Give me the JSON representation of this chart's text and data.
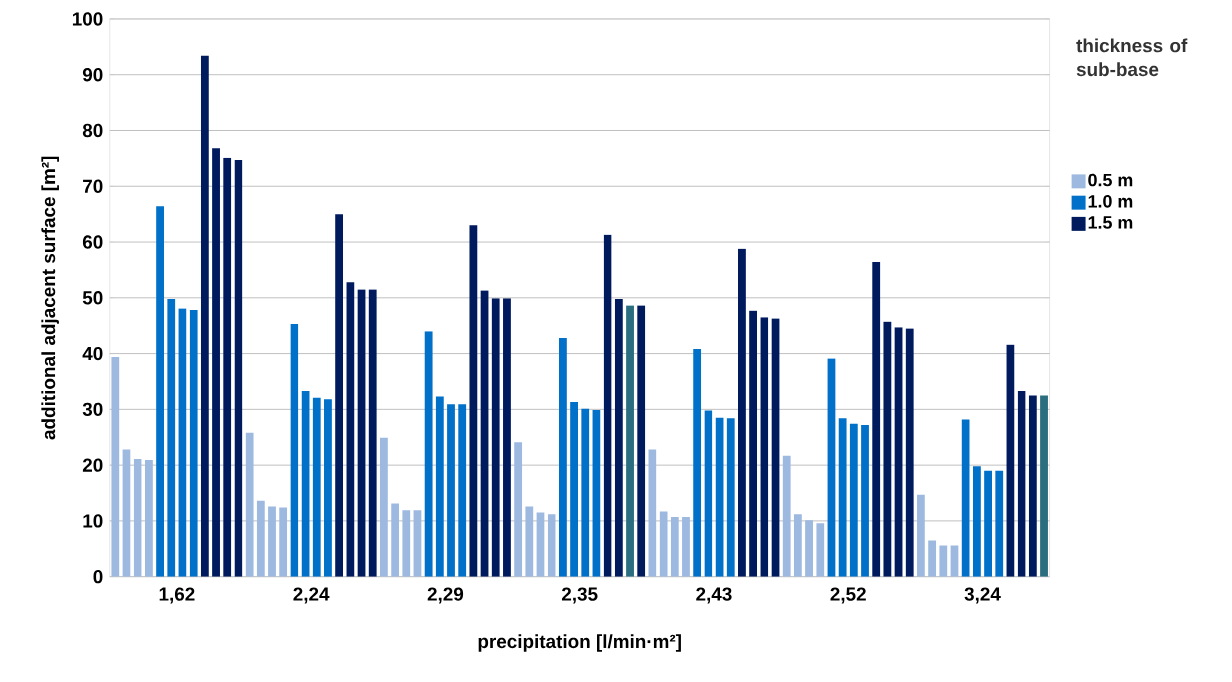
{
  "chart_data": {
    "type": "bar",
    "xlabel": "precipitation [l/min·m²]",
    "ylabel": "additional adjacent surface [m²]",
    "legend_title": "thickness of sub-base",
    "categories": [
      "1,62",
      "2,24",
      "2,29",
      "2,35",
      "2,43",
      "2,52",
      "3,24"
    ],
    "ylim": [
      0,
      100
    ],
    "yticks": [
      0,
      10,
      20,
      30,
      40,
      50,
      60,
      70,
      80,
      90,
      100
    ],
    "grid": "y",
    "legend": "right",
    "series": [
      {
        "name": "0.5 m",
        "color": "#9db9e0",
        "values": [
          39.4,
          25.8,
          24.9,
          24.1,
          22.8,
          21.7,
          14.7
        ]
      },
      {
        "color": "#9db9e0",
        "values": [
          22.8,
          13.6,
          13.1,
          12.6,
          11.7,
          11.2,
          6.5
        ]
      },
      {
        "color": "#9db9e0",
        "values": [
          21.1,
          12.6,
          11.9,
          11.5,
          10.7,
          10.1,
          5.6
        ]
      },
      {
        "color": "#9db9e0",
        "values": [
          20.9,
          12.4,
          11.9,
          11.2,
          10.7,
          9.6,
          5.6
        ]
      },
      {
        "name": "1.0 m",
        "color": "#0070c8",
        "values": [
          66.4,
          45.3,
          44.0,
          42.8,
          40.8,
          39.1,
          28.2
        ]
      },
      {
        "color": "#0070c8",
        "values": [
          49.8,
          33.3,
          32.3,
          31.3,
          29.8,
          28.4,
          19.8
        ]
      },
      {
        "color": "#0070c8",
        "values": [
          48.1,
          32.1,
          30.9,
          30.1,
          28.5,
          27.4,
          19.0
        ]
      },
      {
        "color": "#0070c8",
        "values": [
          47.8,
          31.8,
          30.9,
          29.9,
          28.4,
          27.2,
          19.0
        ]
      },
      {
        "name": "1.5 m",
        "color": "#001a5e",
        "values": [
          93.4,
          65.0,
          63.0,
          61.3,
          58.8,
          56.4,
          41.6
        ]
      },
      {
        "color": "#001a5e",
        "values": [
          76.8,
          52.8,
          51.3,
          49.8,
          47.7,
          45.7,
          33.3
        ]
      },
      {
        "values": [
          75.1,
          51.5,
          49.9,
          48.6,
          46.5,
          44.7,
          32.5
        ],
        "colors": [
          "#001a5e",
          "#001a5e",
          "#001a5e",
          "#2a6e80",
          "#001a5e",
          "#001a5e",
          "#001a5e"
        ]
      },
      {
        "values": [
          74.7,
          51.5,
          49.9,
          48.6,
          46.3,
          44.5,
          32.5
        ],
        "colors": [
          "#001a5e",
          "#001a5e",
          "#001a5e",
          "#001a5e",
          "#001a5e",
          "#001a5e",
          "#2a6e80"
        ]
      }
    ]
  }
}
